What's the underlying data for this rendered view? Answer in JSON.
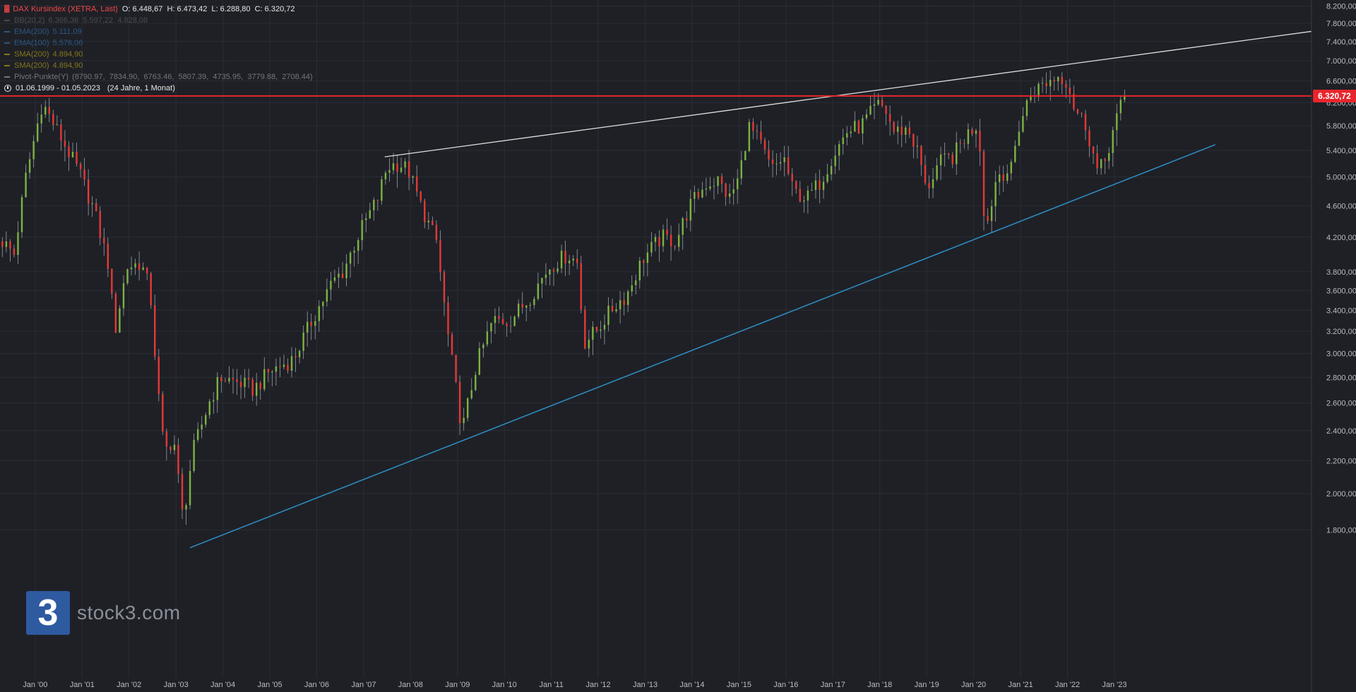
{
  "header": {
    "title": "DAX Kursindex (XETRA, Last)",
    "ohlc": "O: 6.448,67  H: 6.473,42  L: 6.288,80  C: 6.320,72",
    "indicators": [
      {
        "label": "BB(20,2)",
        "values": "6.366,36  5.597,22  4.828,08",
        "color": "#4a4e55"
      },
      {
        "label": "EMA(200)",
        "values": "5.111,09",
        "color": "#2b5a8a"
      },
      {
        "label": "EMA(100)",
        "values": "5.576,06",
        "color": "#2b5a8a"
      },
      {
        "label": "SMA(200)",
        "values": "4.894,90",
        "color": "#8a7a1a"
      },
      {
        "label": "SMA(200)",
        "values": "4.894,90",
        "color": "#8a7a1a"
      },
      {
        "label": "Pivot-Punkte(Y)",
        "values": "(8790.97,  7834.90,  6763.46,  5807.39,  4735.95,  3779.88,  2708.44)",
        "color": "#777b82"
      }
    ],
    "period": "01.06.1999 - 01.05.2023",
    "period_span": "(24 Jahre, 1 Monat)"
  },
  "logo": {
    "mark": "3",
    "text": "stock3.com"
  },
  "price_tag": "6.320,72",
  "colors": {
    "background": "#1e2026",
    "up": "#7cb342",
    "down": "#e53935",
    "wick": "#9aa0a6",
    "grid": "#2a2d34",
    "price_line": "#e8262c",
    "resistance_line": "#dddddd",
    "support_line": "#2f8fc4"
  },
  "chart_data": {
    "type": "candlestick",
    "title": "DAX Kursindex (XETRA, Last)",
    "scale": "log",
    "ylim": [
      1700,
      8400
    ],
    "y_ticks": [
      1800,
      2000,
      2200,
      2400,
      2600,
      2800,
      3000,
      3200,
      3400,
      3600,
      3800,
      4200,
      4600,
      5000,
      5400,
      5800,
      6200,
      6600,
      7000,
      7400,
      7800,
      8200
    ],
    "y_tick_labels": [
      "1.800,00",
      "2.000,00",
      "2.200,00",
      "2.400,00",
      "2.600,00",
      "2.800,00",
      "3.000,00",
      "3.200,00",
      "3.400,00",
      "3.600,00",
      "3.800,00",
      "4.200,00",
      "4.600,00",
      "5.000,00",
      "5.400,00",
      "5.800,00",
      "6.200,00",
      "6.600,00",
      "7.000,00",
      "7.400,00",
      "7.800,00",
      "8.200,00"
    ],
    "x_tick_labels": [
      "Jan '00",
      "Jan '01",
      "Jan '02",
      "Jan '03",
      "Jan '04",
      "Jan '05",
      "Jan '06",
      "Jan '07",
      "Jan '08",
      "Jan '09",
      "Jan '10",
      "Jan '11",
      "Jan '12",
      "Jan '13",
      "Jan '14",
      "Jan '15",
      "Jan '16",
      "Jan '17",
      "Jan '18",
      "Jan '19",
      "Jan '20",
      "Jan '21",
      "Jan '22",
      "Jan '23"
    ],
    "x_tick_years": [
      2000,
      2001,
      2002,
      2003,
      2004,
      2005,
      2006,
      2007,
      2008,
      2009,
      2010,
      2011,
      2012,
      2013,
      2014,
      2015,
      2016,
      2017,
      2018,
      2019,
      2020,
      2021,
      2022,
      2023
    ],
    "x_range_years": [
      1999.25,
      2027.2
    ],
    "close_path": [
      [
        1999.3,
        4150
      ],
      [
        1999.55,
        4000
      ],
      [
        1999.8,
        5000
      ],
      [
        2000.15,
        6200
      ],
      [
        2000.55,
        5600
      ],
      [
        2000.95,
        5050
      ],
      [
        2001.25,
        4550
      ],
      [
        2001.55,
        3900
      ],
      [
        2001.7,
        3200
      ],
      [
        2001.95,
        3850
      ],
      [
        2002.25,
        3900
      ],
      [
        2002.45,
        3600
      ],
      [
        2002.6,
        2750
      ],
      [
        2002.75,
        2250
      ],
      [
        2002.95,
        2350
      ],
      [
        2003.15,
        1850
      ],
      [
        2003.35,
        2250
      ],
      [
        2003.7,
        2600
      ],
      [
        2003.95,
        2800
      ],
      [
        2004.4,
        2750
      ],
      [
        2004.65,
        2700
      ],
      [
        2005.0,
        2850
      ],
      [
        2005.5,
        2950
      ],
      [
        2005.95,
        3350
      ],
      [
        2006.35,
        3700
      ],
      [
        2006.55,
        3800
      ],
      [
        2006.95,
        4300
      ],
      [
        2007.3,
        4700
      ],
      [
        2007.5,
        5150
      ],
      [
        2007.75,
        5200
      ],
      [
        2007.95,
        5100
      ],
      [
        2008.25,
        4550
      ],
      [
        2008.55,
        4150
      ],
      [
        2008.8,
        3150
      ],
      [
        2009.1,
        2400
      ],
      [
        2009.4,
        2900
      ],
      [
        2009.75,
        3300
      ],
      [
        2010.1,
        3300
      ],
      [
        2010.5,
        3500
      ],
      [
        2010.95,
        3850
      ],
      [
        2011.35,
        4000
      ],
      [
        2011.55,
        3900
      ],
      [
        2011.7,
        3100
      ],
      [
        2011.95,
        3200
      ],
      [
        2012.35,
        3450
      ],
      [
        2012.6,
        3550
      ],
      [
        2012.95,
        3950
      ],
      [
        2013.35,
        4200
      ],
      [
        2013.65,
        4150
      ],
      [
        2013.95,
        4600
      ],
      [
        2014.3,
        4900
      ],
      [
        2014.55,
        4950
      ],
      [
        2014.8,
        4700
      ],
      [
        2015.0,
        5000
      ],
      [
        2015.2,
        5800
      ],
      [
        2015.45,
        5500
      ],
      [
        2015.7,
        5100
      ],
      [
        2015.95,
        5300
      ],
      [
        2016.15,
        4800
      ],
      [
        2016.45,
        4700
      ],
      [
        2016.75,
        4950
      ],
      [
        2016.98,
        5300
      ],
      [
        2017.3,
        5700
      ],
      [
        2017.6,
        5800
      ],
      [
        2017.95,
        6150
      ],
      [
        2018.1,
        6100
      ],
      [
        2018.3,
        5700
      ],
      [
        2018.6,
        5750
      ],
      [
        2018.85,
        5300
      ],
      [
        2018.98,
        4800
      ],
      [
        2019.25,
        5200
      ],
      [
        2019.55,
        5300
      ],
      [
        2019.85,
        5650
      ],
      [
        2020.1,
        5850
      ],
      [
        2020.25,
        4250
      ],
      [
        2020.5,
        5050
      ],
      [
        2020.8,
        5100
      ],
      [
        2020.95,
        5750
      ],
      [
        2021.2,
        6350
      ],
      [
        2021.5,
        6550
      ],
      [
        2021.8,
        6700
      ],
      [
        2022.0,
        6600
      ],
      [
        2022.15,
        6100
      ],
      [
        2022.4,
        5800
      ],
      [
        2022.65,
        5050
      ],
      [
        2022.8,
        5250
      ],
      [
        2023.0,
        5800
      ],
      [
        2023.2,
        6300
      ],
      [
        2023.34,
        6320
      ]
    ],
    "annotations": {
      "price_line": 6320.72,
      "resistance_trendline": [
        [
          2007.45,
          5300
        ],
        [
          2027.2,
          7620
        ]
      ],
      "support_trendline": [
        [
          2003.3,
          1710
        ],
        [
          2025.15,
          5490
        ]
      ]
    }
  }
}
